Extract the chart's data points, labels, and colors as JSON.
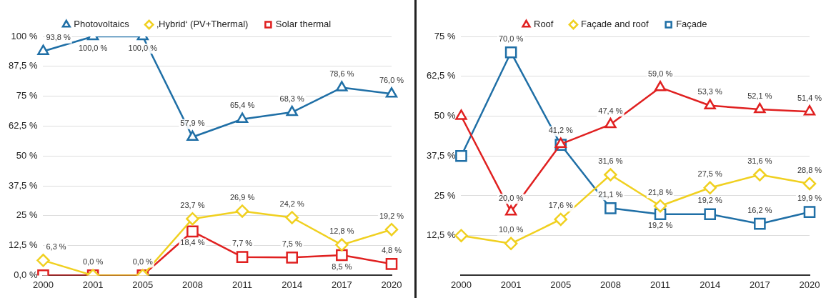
{
  "chart_data": [
    {
      "type": "line",
      "categories": [
        "2000",
        "2001",
        "2005",
        "2008",
        "2011",
        "2014",
        "2017",
        "2020"
      ],
      "ylim": [
        0,
        100
      ],
      "yticks": [
        {
          "value": 0,
          "label": "0,0 %"
        },
        {
          "value": 12.5,
          "label": "12,5 %"
        },
        {
          "value": 25,
          "label": "25 %"
        },
        {
          "value": 37.5,
          "label": "37,5 %"
        },
        {
          "value": 50,
          "label": "50 %"
        },
        {
          "value": 62.5,
          "label": "62,5 %"
        },
        {
          "value": 75,
          "label": "75 %"
        },
        {
          "value": 87.5,
          "label": "87,5 %"
        },
        {
          "value": 100,
          "label": "100 %"
        }
      ],
      "grid": "y",
      "legend": "top",
      "line_style": "solid",
      "series": [
        {
          "name": "Photovoltaics",
          "color": "#1f6fa6",
          "marker": "triangle",
          "values": [
            93.8,
            100,
            100,
            57.9,
            65.4,
            68.3,
            78.6,
            76.0
          ],
          "value_labels": [
            "93,8 %",
            "100,0 %",
            "100,0 %",
            "57,9 %",
            "65,4 %",
            "68,3 %",
            "78,6 %",
            "76,0 %"
          ]
        },
        {
          "name": "‚Hybrid‘ (PV+Thermal)",
          "color": "#f0d020",
          "marker": "diamond",
          "values": [
            6.3,
            0,
            0,
            23.7,
            26.9,
            24.2,
            12.8,
            19.2
          ],
          "value_labels": [
            "6,3 %",
            "0,0 %",
            "0,0 %",
            "23,7 %",
            "26,9 %",
            "24,2 %",
            "12,8 %",
            "19,2 %"
          ]
        },
        {
          "name": "Solar thermal",
          "color": "#e02020",
          "marker": "square",
          "values": [
            0,
            0,
            0,
            18.4,
            7.7,
            7.5,
            8.5,
            4.8
          ],
          "value_labels": [
            null,
            null,
            null,
            "18,4 %",
            "7,7 %",
            "7,5 %",
            "8,5 %",
            "4,8 %"
          ]
        }
      ]
    },
    {
      "type": "line",
      "categories": [
        "2000",
        "2001",
        "2005",
        "2008",
        "2011",
        "2014",
        "2017",
        "2020"
      ],
      "ylim": [
        0,
        75
      ],
      "yticks": [
        {
          "value": 12.5,
          "label": "12,5 %"
        },
        {
          "value": 25,
          "label": "25 %"
        },
        {
          "value": 37.5,
          "label": "37,5 %"
        },
        {
          "value": 50,
          "label": "50 %"
        },
        {
          "value": 62.5,
          "label": "62,5 %"
        },
        {
          "value": 75,
          "label": "75 %"
        }
      ],
      "grid": "y",
      "legend": "top",
      "line_style": "solid",
      "series": [
        {
          "name": "Roof",
          "color": "#e02020",
          "marker": "triangle",
          "values": [
            50,
            20.0,
            41.2,
            47.4,
            59.0,
            53.3,
            52.1,
            51.4
          ],
          "value_labels": [
            null,
            "20,0 %",
            "41,2 %",
            "47,4 %",
            "59,0 %",
            "53,3 %",
            "52,1 %",
            "51,4 %"
          ]
        },
        {
          "name": "Façade and roof",
          "color": "#f0d020",
          "marker": "diamond",
          "values": [
            12.5,
            10.0,
            17.6,
            31.6,
            21.8,
            27.5,
            31.6,
            28.8
          ],
          "value_labels": [
            null,
            "10,0 %",
            "17,6 %",
            "31,6 %",
            "21,8 %",
            "27,5 %",
            "31,6 %",
            "28,8 %"
          ]
        },
        {
          "name": "Façade",
          "color": "#1f6fa6",
          "marker": "square",
          "values": [
            37.5,
            70.0,
            41,
            21.1,
            19.2,
            19.2,
            16.2,
            19.9
          ],
          "value_labels": [
            null,
            "70,0 %",
            null,
            "21,1 %",
            "19,2 %",
            "19,2 %",
            "16,2 %",
            "19,9 %"
          ]
        }
      ]
    }
  ]
}
